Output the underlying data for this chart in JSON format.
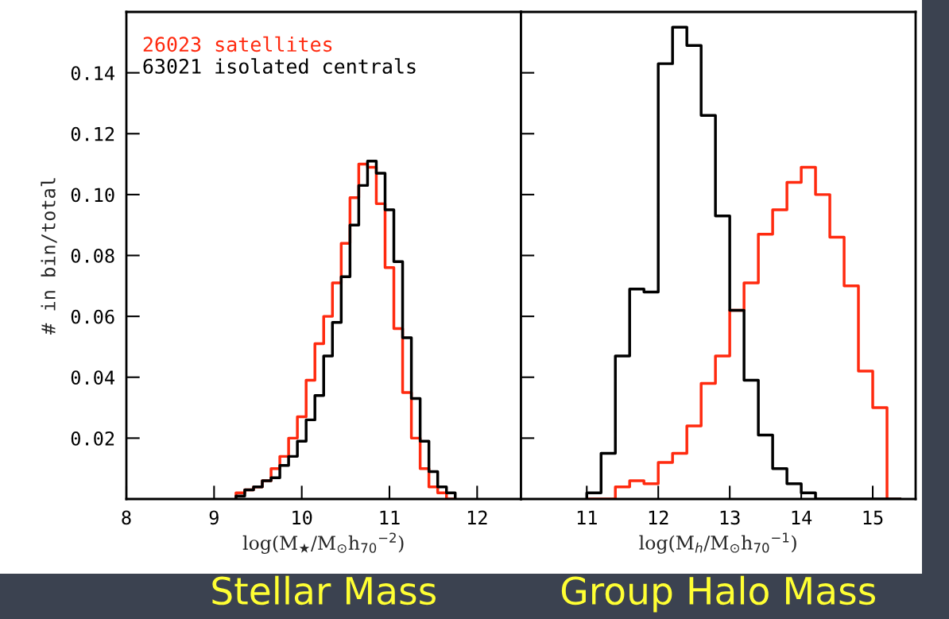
{
  "chart_data": [
    {
      "type": "histogram",
      "title": "Stellar Mass",
      "xlabel": "log(M$_{★}$/M$_{⊙}$h$_{70}$$^{−2}$)",
      "ylabel": "# in bin/total",
      "xlim": [
        8,
        12.5
      ],
      "xticks": [
        8,
        9,
        10,
        11,
        12
      ],
      "ylim": [
        0,
        0.16
      ],
      "yticks": [
        0.02,
        0.04,
        0.06,
        0.08,
        {
          "value": 0.1,
          "label": "0.10"
        },
        0.12,
        0.14
      ],
      "legend": "top left",
      "bins": [
        9.25,
        9.35,
        9.45,
        9.55,
        9.65,
        9.75,
        9.85,
        9.95,
        10.05,
        10.15,
        10.25,
        10.35,
        10.45,
        10.55,
        10.65,
        10.75,
        10.85,
        10.95,
        11.05,
        11.15,
        11.25,
        11.35,
        11.45,
        11.55,
        11.65,
        11.75
      ],
      "series": [
        {
          "name": "26023 satellites",
          "color": "#ff2a0f",
          "values": [
            0.002,
            0.003,
            0.004,
            0.006,
            0.01,
            0.014,
            0.02,
            0.027,
            0.039,
            0.051,
            0.06,
            0.071,
            0.084,
            0.099,
            0.11,
            0.109,
            0.097,
            0.076,
            0.056,
            0.035,
            0.02,
            0.01,
            0.004,
            0.002,
            0
          ]
        },
        {
          "name": "63021 isolated centrals",
          "color": "#000000",
          "values": [
            0.001,
            0.003,
            0.004,
            0.006,
            0.007,
            0.011,
            0.014,
            0.019,
            0.026,
            0.034,
            0.047,
            0.058,
            0.073,
            0.09,
            0.103,
            0.111,
            0.107,
            0.095,
            0.078,
            0.053,
            0.033,
            0.019,
            0.009,
            0.004,
            0.002
          ]
        }
      ]
    },
    {
      "type": "histogram",
      "title": "Group Halo Mass",
      "xlabel": "log(M$_{h}$/M$_{⊙}$h$_{70}$$^{−1}$)",
      "xlim": [
        10.08,
        15.6
      ],
      "xticks": [
        11,
        12,
        13,
        14,
        15
      ],
      "ylim": [
        0,
        0.16
      ],
      "yticks": [
        0.02,
        0.04,
        0.06,
        0.08,
        0.1,
        0.12,
        0.14
      ],
      "tick_labels": "x",
      "bins": [
        11.0,
        11.2,
        11.4,
        11.6,
        11.8,
        12.0,
        12.2,
        12.4,
        12.6,
        12.8,
        13.0,
        13.2,
        13.4,
        13.6,
        13.8,
        14.0,
        14.2,
        14.4,
        14.6,
        14.8,
        15.0,
        15.2,
        15.4
      ],
      "series": [
        {
          "color": "#ff2a0f",
          "values": [
            0,
            0,
            0.004,
            0.006,
            0.005,
            0.012,
            0.015,
            0.024,
            0.038,
            0.047,
            0.062,
            0.071,
            0.087,
            0.095,
            0.104,
            0.109,
            0.1,
            0.086,
            0.07,
            0.042,
            0.03,
            0
          ]
        },
        {
          "color": "#000000",
          "values": [
            0.002,
            0.015,
            0.047,
            0.069,
            0.068,
            0.143,
            0.155,
            0.149,
            0.126,
            0.093,
            0.062,
            0.039,
            0.021,
            0.01,
            0.005,
            0.002,
            0,
            0,
            0,
            0,
            0,
            0
          ]
        }
      ]
    }
  ]
}
